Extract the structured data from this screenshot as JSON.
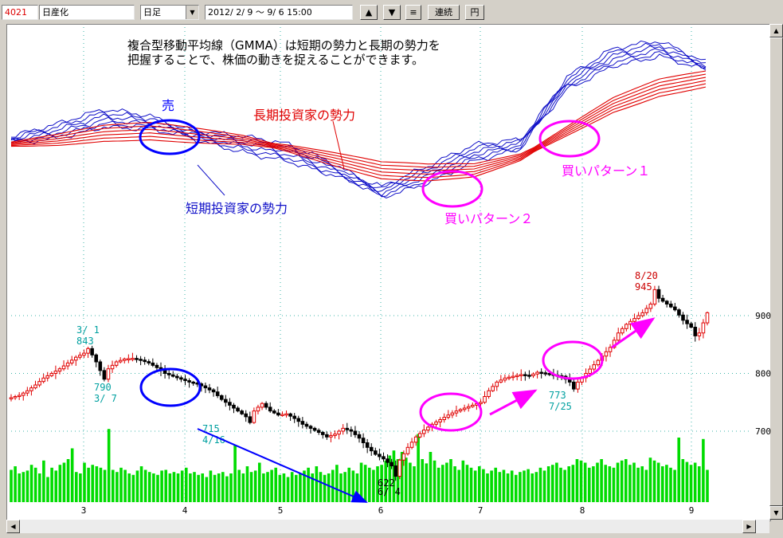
{
  "toolbar": {
    "code": "4021",
    "name": "日産化",
    "period": "日足",
    "period_arrow": "▼",
    "range": "2012/ 2/ 9 ～  9/ 6 15:00",
    "up_label": "▲",
    "down_label": "▼",
    "menu_label": "≡",
    "continuous_label": "連続",
    "yen_label": "円"
  },
  "scroll": {
    "left": "◀",
    "right": "▶",
    "up": "▲",
    "down": "▼"
  },
  "colors": {
    "short_term": "#1010c8",
    "long_term": "#e00000",
    "grid": "#3cb4a8",
    "up_candle": "#e00000",
    "down_candle": "#000000",
    "volume": "#00dc00",
    "annot_blue": "#0000ff",
    "annot_magenta": "#ff00ff",
    "label_cyan": "#00a0a0",
    "label_red": "#cc0000"
  },
  "chart_data": [
    {
      "type": "line",
      "name": "GMMA",
      "x_range": [
        0,
        150
      ],
      "y_range": [
        560,
        1000
      ],
      "series": [
        {
          "name": "短期投資家の勢力",
          "group": "short",
          "x": [
            0,
            10,
            20,
            30,
            40,
            50,
            60,
            70,
            80,
            90,
            100,
            110,
            120,
            130,
            140,
            150
          ],
          "y": [
            770,
            790,
            820,
            810,
            780,
            760,
            740,
            700,
            650,
            690,
            740,
            760,
            900,
            960,
            980,
            940
          ]
        },
        {
          "name": "長期投資家の勢力",
          "group": "long",
          "x": [
            0,
            10,
            20,
            30,
            40,
            50,
            60,
            70,
            80,
            90,
            100,
            110,
            120,
            130,
            140,
            150
          ],
          "y": [
            760,
            770,
            785,
            790,
            780,
            770,
            750,
            725,
            700,
            695,
            700,
            730,
            790,
            850,
            890,
            910
          ]
        }
      ]
    },
    {
      "type": "candlestick",
      "name": "price",
      "x_ticks": [
        "3",
        "4",
        "5",
        "6",
        "7",
        "8",
        "9"
      ],
      "y_ticks": [
        700,
        800,
        900
      ],
      "y_range": [
        600,
        980
      ],
      "labels": [
        {
          "date": "3/ 1",
          "value": "843"
        },
        {
          "date": "3/ 7",
          "value": "790"
        },
        {
          "date": "4/16",
          "value": "715"
        },
        {
          "date": "6/ 4",
          "value": "622"
        },
        {
          "date": "7/25",
          "value": "773"
        },
        {
          "date": "8/20",
          "value": "945"
        }
      ],
      "close_points": [
        [
          0,
          758
        ],
        [
          2,
          762
        ],
        [
          4,
          770
        ],
        [
          6,
          780
        ],
        [
          8,
          792
        ],
        [
          10,
          800
        ],
        [
          12,
          808
        ],
        [
          14,
          818
        ],
        [
          16,
          828
        ],
        [
          18,
          835
        ],
        [
          19,
          843
        ],
        [
          20,
          832
        ],
        [
          21,
          820
        ],
        [
          22,
          805
        ],
        [
          23,
          790
        ],
        [
          24,
          808
        ],
        [
          26,
          820
        ],
        [
          28,
          825
        ],
        [
          30,
          826
        ],
        [
          32,
          823
        ],
        [
          34,
          818
        ],
        [
          36,
          810
        ],
        [
          38,
          800
        ],
        [
          40,
          795
        ],
        [
          42,
          790
        ],
        [
          44,
          785
        ],
        [
          46,
          782
        ],
        [
          48,
          775
        ],
        [
          50,
          768
        ],
        [
          52,
          755
        ],
        [
          54,
          745
        ],
        [
          56,
          735
        ],
        [
          58,
          725
        ],
        [
          59,
          715
        ],
        [
          60,
          735
        ],
        [
          62,
          748
        ],
        [
          64,
          735
        ],
        [
          66,
          728
        ],
        [
          68,
          730
        ],
        [
          70,
          722
        ],
        [
          72,
          712
        ],
        [
          74,
          705
        ],
        [
          76,
          698
        ],
        [
          78,
          690
        ],
        [
          80,
          695
        ],
        [
          82,
          705
        ],
        [
          84,
          700
        ],
        [
          86,
          688
        ],
        [
          88,
          672
        ],
        [
          90,
          660
        ],
        [
          92,
          652
        ],
        [
          94,
          640
        ],
        [
          95,
          622
        ],
        [
          96,
          650
        ],
        [
          98,
          672
        ],
        [
          100,
          690
        ],
        [
          102,
          702
        ],
        [
          104,
          712
        ],
        [
          106,
          720
        ],
        [
          108,
          728
        ],
        [
          110,
          735
        ],
        [
          112,
          740
        ],
        [
          114,
          745
        ],
        [
          116,
          750
        ],
        [
          118,
          770
        ],
        [
          120,
          785
        ],
        [
          122,
          792
        ],
        [
          124,
          795
        ],
        [
          126,
          798
        ],
        [
          128,
          796
        ],
        [
          130,
          802
        ],
        [
          132,
          800
        ],
        [
          134,
          797
        ],
        [
          136,
          795
        ],
        [
          138,
          785
        ],
        [
          139,
          773
        ],
        [
          140,
          785
        ],
        [
          142,
          800
        ],
        [
          144,
          815
        ],
        [
          146,
          830
        ],
        [
          148,
          845
        ],
        [
          150,
          870
        ],
        [
          152,
          885
        ],
        [
          154,
          895
        ],
        [
          156,
          905
        ],
        [
          158,
          920
        ],
        [
          159,
          945
        ],
        [
          160,
          930
        ],
        [
          162,
          920
        ],
        [
          164,
          910
        ],
        [
          166,
          892
        ],
        [
          168,
          880
        ],
        [
          169,
          865
        ],
        [
          170,
          870
        ],
        [
          172,
          905
        ]
      ]
    },
    {
      "type": "bar",
      "name": "volume",
      "values": [
        45,
        50,
        40,
        42,
        44,
        52,
        48,
        40,
        58,
        35,
        48,
        44,
        52,
        55,
        60,
        75,
        42,
        40,
        55,
        48,
        52,
        50,
        48,
        45,
        102,
        45,
        42,
        48,
        45,
        40,
        38,
        44,
        50,
        45,
        42,
        40,
        38,
        44,
        45,
        40,
        42,
        40,
        44,
        48,
        40,
        42,
        38,
        40,
        35,
        44,
        38,
        40,
        42,
        36,
        40,
        80,
        45,
        40,
        50,
        42,
        44,
        55,
        40,
        42,
        45,
        48,
        38,
        40,
        35,
        42,
        38,
        40,
        44,
        48,
        40,
        50,
        42,
        38,
        40,
        45,
        52,
        40,
        42,
        48,
        44,
        40,
        55,
        52,
        48,
        45,
        50,
        52,
        58,
        65,
        72,
        60,
        70,
        62,
        55,
        50,
        95,
        60,
        54,
        70,
        58,
        48,
        52,
        55,
        60,
        50,
        45,
        58,
        52,
        48,
        44,
        50,
        46,
        40,
        44,
        48,
        42,
        45,
        40,
        44,
        38,
        42,
        44,
        46,
        40,
        42,
        48,
        44,
        50,
        52,
        55,
        48,
        45,
        50,
        52,
        60,
        58,
        55,
        48,
        50,
        55,
        60,
        52,
        50,
        48,
        55,
        58,
        60,
        52,
        55,
        48,
        50,
        45,
        62,
        58,
        55,
        50,
        52,
        48,
        45,
        90,
        60,
        56,
        52,
        55,
        50,
        88,
        45
      ]
    }
  ],
  "annotations": {
    "description_line1": "複合型移動平均線（GMMA）は短期の勢力と長期の勢力を",
    "description_line2": "把握することで、株価の動きを捉えることができます。",
    "sell_label": "売",
    "long_term_label": "長期投資家の勢力",
    "short_term_label": "短期投資家の勢力",
    "buy_pattern_1": "買いパターン１",
    "buy_pattern_2": "買いパターン２"
  }
}
